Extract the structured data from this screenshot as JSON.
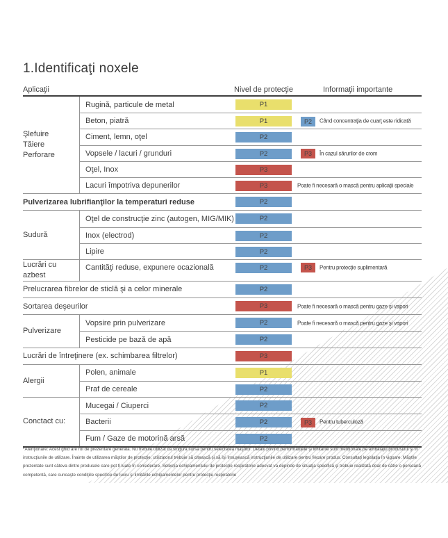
{
  "page": {
    "title": "1.Identificaţi noxele"
  },
  "colors": {
    "P1": "#e9df6c",
    "P2": "#6e9dc9",
    "P3": "#c4544c"
  },
  "table": {
    "headers": {
      "applications": "Aplicaţii",
      "protection": "Nivel de protecţie",
      "info": "Informaţii importante"
    },
    "sections": [
      {
        "type": "group",
        "label": [
          "Şlefuire",
          "Tăiere",
          "Perforare"
        ],
        "rows": [
          {
            "item": "Rugină, particule de metal",
            "level": "P1"
          },
          {
            "item": "Beton, piatră",
            "level": "P1",
            "extra": "P2",
            "info": "Când concentraţia de cuarţ este ridicată"
          },
          {
            "item": "Ciment, lemn, oţel",
            "level": "P2"
          },
          {
            "item": "Vopsele / lacuri / grunduri",
            "level": "P2",
            "extra": "P3",
            "info": "În cazul sărurilor de crom"
          },
          {
            "item": "Oţel, Inox",
            "level": "P3"
          },
          {
            "item": "Lacuri împotriva depunerilor",
            "level": "P3",
            "info": "Poate fi necesară o mască pentru aplicaţii speciale"
          }
        ]
      },
      {
        "type": "full",
        "bold": true,
        "item": "Pulverizarea lubrifianţilor la temperaturi reduse",
        "level": "P2"
      },
      {
        "type": "group",
        "label": [
          "Sudură"
        ],
        "rows": [
          {
            "item": "Oţel de construcţie zinc (autogen, MIG/MIK)",
            "level": "P2"
          },
          {
            "item": "Inox (electrod)",
            "level": "P2"
          },
          {
            "item": "Lipire",
            "level": "P2"
          }
        ]
      },
      {
        "type": "group",
        "label": [
          "Lucrări cu azbest"
        ],
        "rows": [
          {
            "item": "Cantităţi reduse, expunere ocazională",
            "level": "P2",
            "extra": "P3",
            "info": "Pentru protecţie suplimentară"
          }
        ]
      },
      {
        "type": "full",
        "item": "Prelucrarea fibrelor de sticlă şi a celor minerale",
        "level": "P2"
      },
      {
        "type": "full",
        "item": "Sortarea deşeurilor",
        "level": "P3",
        "info": "Poate fi necesară o mască pentru gaze şi vapori"
      },
      {
        "type": "group",
        "label": [
          "Pulverizare"
        ],
        "rows": [
          {
            "item": "Vopsire prin pulverizare",
            "level": "P2",
            "info": "Poate fi necesară o mască pentru gaze şi vapori"
          },
          {
            "item": "Pesticide pe bază de apă",
            "level": "P2"
          }
        ]
      },
      {
        "type": "full",
        "item": "Lucrări de întreţinere (ex. schimbarea filtrelor)",
        "level": "P3"
      },
      {
        "type": "group",
        "label": [
          "Alergii"
        ],
        "rows": [
          {
            "item": "Polen, animale",
            "level": "P1"
          },
          {
            "item": "Praf de cereale",
            "level": "P2"
          }
        ]
      },
      {
        "type": "group",
        "label": [
          "Conctact cu:"
        ],
        "rows": [
          {
            "item": "Mucegai / Ciuperci",
            "level": "P2"
          },
          {
            "item": "Bacterii",
            "level": "P2",
            "extra": "P3",
            "info": "Pentru tuberculoză"
          },
          {
            "item": "Fum / Gaze de motorină arsă",
            "level": "P2"
          }
        ]
      }
    ],
    "footnote": "*Atenţionare: Acest ghid are rol de prezentare generală. Nu trebuie utilizat ca singura sursă pentru selectarea măştilor. Detalii privind performanţele şi limitările sunt menţionate pe ambalajul produsului şi în instrucţiunile de utilizare. Înainte de utilizarea măştilor de protecţie, utilizatorul trebuie să citească şi să îşi însuşească instrucţiunile de utilizare pentru fiecare produs. Consultaţi legislaţia în vigoare. Măştile prezentate sunt câteva dintre produsele care pot fi luate în considerare. Selecţia echipamentului de protecţie respiratorie adecvat va depinde de situaţia specifică şi trebuie realizată doar de către o persoană competentă, care cunoaşte condiţiile specifice de lucru şi limitările echipamentelor pentru protecţie respiratorie"
  }
}
